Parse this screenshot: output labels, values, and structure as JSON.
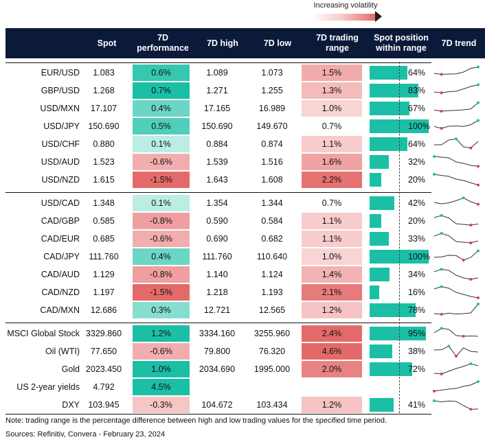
{
  "legend": {
    "label": "Increasing volatility"
  },
  "columns": [
    "Spot",
    "7D\nperformance",
    "7D high",
    "7D low",
    "7D trading\nrange",
    "Spot position\nwithin range",
    "7D trend"
  ],
  "colors": {
    "header_bg": "#0c1a3a",
    "positive_strong": "#1bbfa6",
    "positive_light": "#d6f5f0",
    "negative_light": "#fbdcdc",
    "negative_strong": "#e46a6a",
    "position_bar": "#1bbfa6",
    "trend_line": "#333333",
    "trend_high_dot": "#1bbfa6",
    "trend_low_dot": "#d94040"
  },
  "rows": [
    {
      "group": 0,
      "name": "EUR/USD",
      "spot": "1.083",
      "perf": "0.6%",
      "perf_v": 0.6,
      "high": "1.089",
      "low": "1.073",
      "range": "1.5%",
      "range_v": 1.5,
      "pos": 64,
      "pos_txt": "64%",
      "trend": [
        0.45,
        0.38,
        0.4,
        0.42,
        0.55,
        0.82,
        0.92
      ]
    },
    {
      "group": 0,
      "name": "GBP/USD",
      "spot": "1.268",
      "perf": "0.7%",
      "perf_v": 0.7,
      "high": "1.271",
      "low": "1.255",
      "range": "1.3%",
      "range_v": 1.3,
      "pos": 83,
      "pos_txt": "83%",
      "trend": [
        0.4,
        0.34,
        0.42,
        0.45,
        0.62,
        0.8,
        0.92
      ]
    },
    {
      "group": 0,
      "name": "USD/MXN",
      "spot": "17.107",
      "perf": "0.4%",
      "perf_v": 0.4,
      "high": "17.165",
      "low": "16.989",
      "range": "1.0%",
      "range_v": 1.0,
      "pos": 67,
      "pos_txt": "67%",
      "trend": [
        0.38,
        0.3,
        0.34,
        0.36,
        0.4,
        0.46,
        0.92
      ]
    },
    {
      "group": 0,
      "name": "USD/JPY",
      "spot": "150.690",
      "perf": "0.5%",
      "perf_v": 0.5,
      "high": "150.690",
      "low": "149.670",
      "range": "0.7%",
      "range_v": 0.7,
      "pos": 100,
      "pos_txt": "100%",
      "trend": [
        0.48,
        0.35,
        0.5,
        0.52,
        0.48,
        0.62,
        0.92
      ]
    },
    {
      "group": 0,
      "name": "USD/CHF",
      "spot": "0.880",
      "perf": "0.1%",
      "perf_v": 0.1,
      "high": "0.884",
      "low": "0.874",
      "range": "1.1%",
      "range_v": 1.1,
      "pos": 64,
      "pos_txt": "64%",
      "trend": [
        0.45,
        0.45,
        0.8,
        0.88,
        0.3,
        0.22,
        0.7
      ]
    },
    {
      "group": 0,
      "name": "USD/AUD",
      "spot": "1.523",
      "perf": "-0.6%",
      "perf_v": -0.6,
      "high": "1.539",
      "low": "1.516",
      "range": "1.6%",
      "range_v": 1.6,
      "pos": 32,
      "pos_txt": "32%",
      "trend": [
        0.9,
        0.85,
        0.8,
        0.5,
        0.4,
        0.25,
        0.18
      ]
    },
    {
      "group": 0,
      "name": "USD/NZD",
      "spot": "1.615",
      "perf": "-1.5%",
      "perf_v": -1.5,
      "high": "1.643",
      "low": "1.608",
      "range": "2.2%",
      "range_v": 2.2,
      "pos": 20,
      "pos_txt": "20%",
      "trend": [
        0.9,
        0.82,
        0.75,
        0.55,
        0.45,
        0.28,
        0.12
      ]
    },
    {
      "group": 1,
      "name": "USD/CAD",
      "spot": "1.348",
      "perf": "0.1%",
      "perf_v": 0.1,
      "high": "1.354",
      "low": "1.344",
      "range": "0.7%",
      "range_v": 0.7,
      "pos": 42,
      "pos_txt": "42%",
      "trend": [
        0.55,
        0.45,
        0.52,
        0.68,
        0.88,
        0.6,
        0.42
      ]
    },
    {
      "group": 1,
      "name": "CAD/GBP",
      "spot": "0.585",
      "perf": "-0.8%",
      "perf_v": -0.8,
      "high": "0.590",
      "low": "0.584",
      "range": "1.1%",
      "range_v": 1.1,
      "pos": 20,
      "pos_txt": "20%",
      "trend": [
        0.75,
        0.9,
        0.72,
        0.3,
        0.25,
        0.2,
        0.28
      ]
    },
    {
      "group": 1,
      "name": "CAD/EUR",
      "spot": "0.685",
      "perf": "-0.6%",
      "perf_v": -0.6,
      "high": "0.690",
      "low": "0.682",
      "range": "1.1%",
      "range_v": 1.1,
      "pos": 33,
      "pos_txt": "33%",
      "trend": [
        0.7,
        0.9,
        0.72,
        0.3,
        0.25,
        0.2,
        0.35
      ]
    },
    {
      "group": 1,
      "name": "CAD/JPY",
      "spot": "111.760",
      "perf": "0.4%",
      "perf_v": 0.4,
      "high": "111.760",
      "low": "110.640",
      "range": "1.0%",
      "range_v": 1.0,
      "pos": 100,
      "pos_txt": "100%",
      "trend": [
        0.45,
        0.48,
        0.6,
        0.58,
        0.25,
        0.45,
        0.92
      ]
    },
    {
      "group": 1,
      "name": "CAD/AUD",
      "spot": "1.129",
      "perf": "-0.8%",
      "perf_v": -0.8,
      "high": "1.140",
      "low": "1.124",
      "range": "1.4%",
      "range_v": 1.4,
      "pos": 34,
      "pos_txt": "34%",
      "trend": [
        0.7,
        0.88,
        0.8,
        0.45,
        0.25,
        0.15,
        0.25
      ]
    },
    {
      "group": 1,
      "name": "CAD/NZD",
      "spot": "1.197",
      "perf": "-1.5%",
      "perf_v": -1.5,
      "high": "1.218",
      "low": "1.193",
      "range": "2.1%",
      "range_v": 2.1,
      "pos": 16,
      "pos_txt": "16%",
      "trend": [
        0.75,
        0.92,
        0.8,
        0.5,
        0.35,
        0.2,
        0.1
      ]
    },
    {
      "group": 1,
      "name": "CAD/MXN",
      "spot": "12.686",
      "perf": "0.3%",
      "perf_v": 0.3,
      "high": "12.721",
      "low": "12.565",
      "range": "1.2%",
      "range_v": 1.2,
      "pos": 78,
      "pos_txt": "78%",
      "trend": [
        0.25,
        0.2,
        0.28,
        0.22,
        0.25,
        0.3,
        0.95
      ]
    },
    {
      "group": 2,
      "name": "MSCI Global Stock",
      "spot": "3329.860",
      "perf": "1.2%",
      "perf_v": 1.2,
      "high": "3334.160",
      "low": "3255.960",
      "range": "2.4%",
      "range_v": 2.4,
      "pos": 95,
      "pos_txt": "95%",
      "trend": [
        0.55,
        0.88,
        0.8,
        0.35,
        0.3,
        0.32,
        0.3
      ]
    },
    {
      "group": 2,
      "name": "Oil (WTI)",
      "spot": "77.650",
      "perf": "-0.6%",
      "perf_v": -0.6,
      "high": "79.800",
      "low": "76.320",
      "range": "4.6%",
      "range_v": 4.6,
      "pos": 38,
      "pos_txt": "38%",
      "trend": [
        0.6,
        0.62,
        0.88,
        0.15,
        0.75,
        0.5,
        0.45
      ]
    },
    {
      "group": 2,
      "name": "Gold",
      "spot": "2023.450",
      "perf": "1.0%",
      "perf_v": 1.0,
      "high": "2034.690",
      "low": "1995.000",
      "range": "2.0%",
      "range_v": 2.0,
      "pos": 72,
      "pos_txt": "72%",
      "trend": [
        0.2,
        0.15,
        0.35,
        0.55,
        0.7,
        0.9,
        0.75
      ]
    },
    {
      "group": 2,
      "name": "US 2-year yields",
      "spot": "4.792",
      "perf": "4.5%",
      "perf_v": 4.5,
      "high": "",
      "low": "",
      "range": "",
      "range_v": null,
      "pos": null,
      "pos_txt": "",
      "trend": [
        0.2,
        0.28,
        0.35,
        0.4,
        0.55,
        0.65,
        0.9
      ]
    },
    {
      "group": 2,
      "name": "DXY",
      "spot": "103.945",
      "perf": "-0.3%",
      "perf_v": -0.3,
      "high": "104.672",
      "low": "103.434",
      "range": "1.2%",
      "range_v": 1.2,
      "pos": 41,
      "pos_txt": "41%",
      "trend": [
        0.8,
        0.72,
        0.78,
        0.75,
        0.45,
        0.18,
        0.2
      ]
    }
  ],
  "footer": {
    "note": "Note: trading range is the percentage difference between high and low trading values for the specified time period.",
    "sources": "Sources: Refinitiv, Convera - February 23, 2024"
  },
  "chart_data": {
    "type": "table",
    "columns": [
      "Spot",
      "7D performance",
      "7D high",
      "7D low",
      "7D trading range",
      "Spot position within range",
      "7D trend"
    ],
    "rows": [
      [
        "EUR/USD",
        1.083,
        0.6,
        1.089,
        1.073,
        1.5,
        64
      ],
      [
        "GBP/USD",
        1.268,
        0.7,
        1.271,
        1.255,
        1.3,
        83
      ],
      [
        "USD/MXN",
        17.107,
        0.4,
        17.165,
        16.989,
        1.0,
        67
      ],
      [
        "USD/JPY",
        150.69,
        0.5,
        150.69,
        149.67,
        0.7,
        100
      ],
      [
        "USD/CHF",
        0.88,
        0.1,
        0.884,
        0.874,
        1.1,
        64
      ],
      [
        "USD/AUD",
        1.523,
        -0.6,
        1.539,
        1.516,
        1.6,
        32
      ],
      [
        "USD/NZD",
        1.615,
        -1.5,
        1.643,
        1.608,
        2.2,
        20
      ],
      [
        "USD/CAD",
        1.348,
        0.1,
        1.354,
        1.344,
        0.7,
        42
      ],
      [
        "CAD/GBP",
        0.585,
        -0.8,
        0.59,
        0.584,
        1.1,
        20
      ],
      [
        "CAD/EUR",
        0.685,
        -0.6,
        0.69,
        0.682,
        1.1,
        33
      ],
      [
        "CAD/JPY",
        111.76,
        0.4,
        111.76,
        110.64,
        1.0,
        100
      ],
      [
        "CAD/AUD",
        1.129,
        -0.8,
        1.14,
        1.124,
        1.4,
        34
      ],
      [
        "CAD/NZD",
        1.197,
        -1.5,
        1.218,
        1.193,
        2.1,
        16
      ],
      [
        "CAD/MXN",
        12.686,
        0.3,
        12.721,
        12.565,
        1.2,
        78
      ],
      [
        "MSCI Global Stock",
        3329.86,
        1.2,
        3334.16,
        3255.96,
        2.4,
        95
      ],
      [
        "Oil (WTI)",
        77.65,
        -0.6,
        79.8,
        76.32,
        4.6,
        38
      ],
      [
        "Gold",
        2023.45,
        1.0,
        2034.69,
        1995.0,
        2.0,
        72
      ],
      [
        "US 2-year yields",
        4.792,
        4.5,
        null,
        null,
        null,
        null
      ],
      [
        "DXY",
        103.945,
        -0.3,
        104.672,
        103.434,
        1.2,
        41
      ]
    ]
  }
}
